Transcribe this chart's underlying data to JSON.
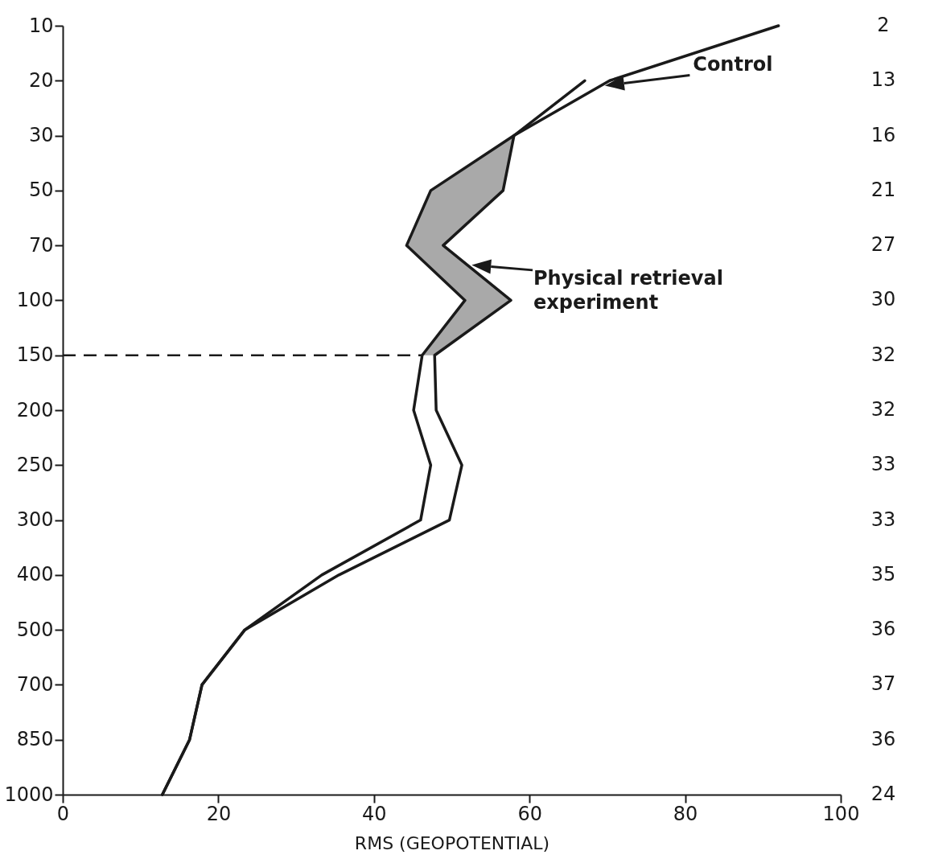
{
  "chart_data": {
    "type": "line",
    "xlabel": "RMS (GEOPOTENTIAL)",
    "categories": [
      "10",
      "20",
      "30",
      "50",
      "70",
      "100",
      "150",
      "200",
      "250",
      "300",
      "400",
      "500",
      "700",
      "850",
      "1000"
    ],
    "xlim": [
      0,
      100
    ],
    "xticks": [
      0,
      20,
      40,
      60,
      80,
      100
    ],
    "series": [
      {
        "name": "Control",
        "color": "#1a1a1a",
        "values": [
          92,
          70.3,
          58,
          47.3,
          44.2,
          51.7,
          46.2,
          45.1,
          47.3,
          46.0,
          33.3,
          23.4,
          17.9,
          16.3,
          12.8
        ]
      },
      {
        "name": "Physical retrieval experiment",
        "color": "#1a1a1a",
        "values": [
          null,
          67.1,
          58,
          56.6,
          48.9,
          57.6,
          47.8,
          48.0,
          51.3,
          49.7,
          35.5,
          23.4,
          17.9,
          16.3,
          12.8
        ],
        "lower": [
          null,
          null,
          58,
          47.3,
          44.2,
          51.7,
          46.2,
          null,
          null,
          null,
          null,
          null,
          null,
          null,
          null
        ],
        "upper": [
          null,
          null,
          58,
          56.6,
          48.9,
          57.6,
          47.8,
          null,
          null,
          null,
          null,
          null,
          null,
          null,
          null
        ]
      }
    ],
    "ref_lines": [
      {
        "axis": "y",
        "value": "150",
        "line_style": "dashed",
        "color": "#1a1a1a"
      }
    ],
    "annotations": [
      "2",
      "13",
      "16",
      "21",
      "27",
      "30",
      "32",
      "32",
      "33",
      "33",
      "35",
      "36",
      "37",
      "36",
      "24"
    ],
    "orientation": "horizontal",
    "line_style": "solid",
    "marker": "none"
  }
}
